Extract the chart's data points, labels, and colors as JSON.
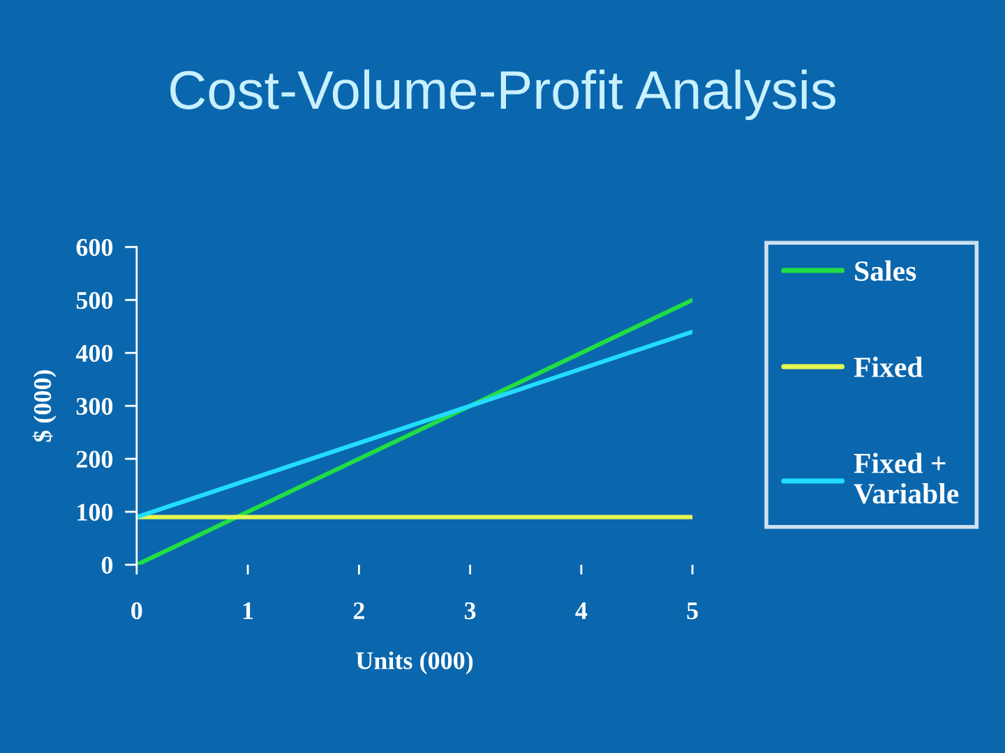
{
  "chart_data": {
    "type": "line",
    "title": "Cost-Volume-Profit Analysis",
    "xlabel": "Units (000)",
    "ylabel": "$ (000)",
    "x": [
      0,
      5
    ],
    "series": [
      {
        "name": "Sales",
        "color": "#22dd44",
        "values": [
          0,
          500
        ]
      },
      {
        "name": "Fixed",
        "color": "#e6f550",
        "values": [
          90,
          90
        ]
      },
      {
        "name": "Fixed +\nVariable",
        "color": "#22ddff",
        "values": [
          90,
          440
        ]
      }
    ],
    "xlim": [
      0,
      5
    ],
    "ylim": [
      0,
      600
    ],
    "xticks": [
      0,
      1,
      2,
      3,
      4,
      5
    ],
    "yticks": [
      0,
      100,
      200,
      300,
      400,
      500,
      600
    ],
    "legend": "right",
    "line_style": "solid"
  }
}
